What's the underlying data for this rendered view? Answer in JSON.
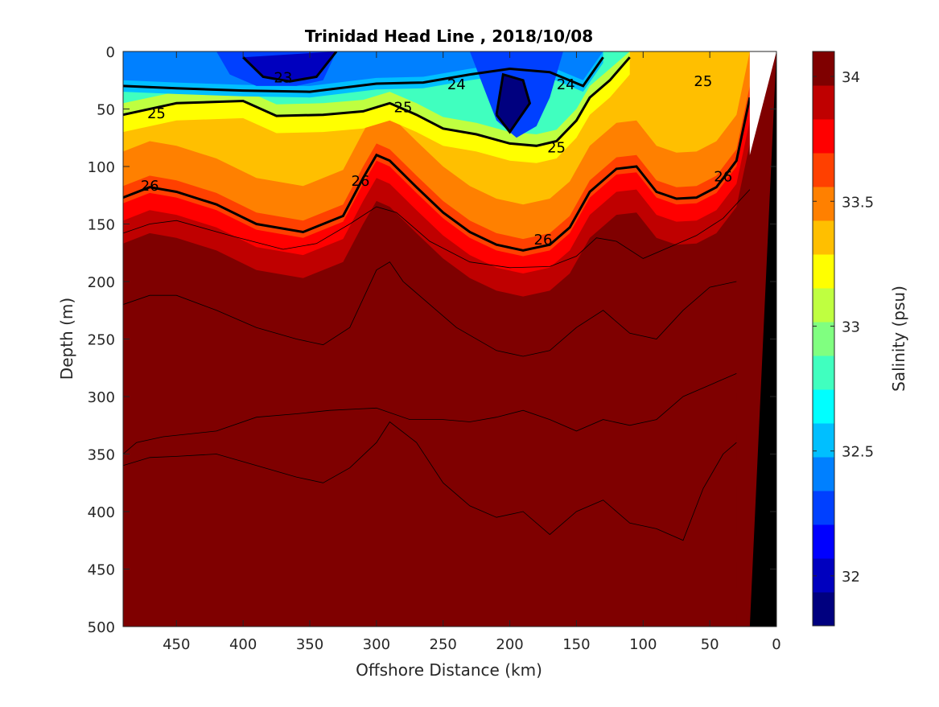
{
  "chart_data": {
    "type": "heatmap",
    "title": "Trinidad Head Line , 2018/10/08",
    "xlabel": "Offshore Distance (km)",
    "ylabel": "Depth (m)",
    "colorbar_label": "Salinity (psu)",
    "xlim": [
      490,
      0
    ],
    "ylim": [
      500,
      0
    ],
    "x_ticks": [
      450,
      400,
      350,
      300,
      250,
      200,
      150,
      100,
      50,
      0
    ],
    "y_ticks": [
      0,
      50,
      100,
      150,
      200,
      250,
      300,
      350,
      400,
      450,
      500
    ],
    "colorbar_range": [
      31.8,
      34.1
    ],
    "colorbar_ticks": [
      32,
      32.5,
      33,
      33.5,
      34
    ],
    "colormap": [
      "#00007f",
      "#0000bf",
      "#0000ff",
      "#0040ff",
      "#0080ff",
      "#00bfff",
      "#00ffff",
      "#40ffbf",
      "#80ff80",
      "#bfff40",
      "#ffff00",
      "#ffbf00",
      "#ff8000",
      "#ff4000",
      "#ff0000",
      "#bf0000",
      "#7f0000"
    ],
    "density_contour_labels": [
      {
        "text": "23",
        "x": 370,
        "y": 22
      },
      {
        "text": "24",
        "x": 240,
        "y": 28
      },
      {
        "text": "24",
        "x": 158,
        "y": 28
      },
      {
        "text": "25",
        "x": 465,
        "y": 53
      },
      {
        "text": "25",
        "x": 280,
        "y": 48
      },
      {
        "text": "25",
        "x": 165,
        "y": 83
      },
      {
        "text": "25",
        "x": 55,
        "y": 25
      },
      {
        "text": "26",
        "x": 470,
        "y": 116
      },
      {
        "text": "26",
        "x": 312,
        "y": 112
      },
      {
        "text": "26",
        "x": 175,
        "y": 163
      },
      {
        "text": "26",
        "x": 40,
        "y": 108
      }
    ],
    "isopycnals": [
      {
        "name": "24",
        "points": [
          [
            490,
            30
          ],
          [
            450,
            32
          ],
          [
            400,
            34
          ],
          [
            350,
            35
          ],
          [
            300,
            28
          ],
          [
            265,
            27
          ],
          [
            230,
            20
          ],
          [
            200,
            15
          ],
          [
            170,
            18
          ],
          [
            145,
            30
          ],
          [
            130,
            5
          ]
        ]
      },
      {
        "name": "25",
        "points": [
          [
            490,
            55
          ],
          [
            450,
            45
          ],
          [
            400,
            43
          ],
          [
            375,
            56
          ],
          [
            340,
            55
          ],
          [
            310,
            52
          ],
          [
            290,
            45
          ],
          [
            270,
            55
          ],
          [
            250,
            67
          ],
          [
            225,
            72
          ],
          [
            200,
            80
          ],
          [
            180,
            82
          ],
          [
            165,
            78
          ],
          [
            150,
            60
          ],
          [
            140,
            40
          ],
          [
            125,
            25
          ],
          [
            110,
            5
          ]
        ]
      },
      {
        "name": "26",
        "points": [
          [
            490,
            127
          ],
          [
            470,
            118
          ],
          [
            450,
            122
          ],
          [
            420,
            133
          ],
          [
            390,
            150
          ],
          [
            355,
            157
          ],
          [
            325,
            143
          ],
          [
            310,
            110
          ],
          [
            300,
            90
          ],
          [
            290,
            95
          ],
          [
            270,
            118
          ],
          [
            250,
            140
          ],
          [
            230,
            157
          ],
          [
            210,
            168
          ],
          [
            190,
            173
          ],
          [
            170,
            168
          ],
          [
            155,
            153
          ],
          [
            140,
            122
          ],
          [
            120,
            102
          ],
          [
            105,
            100
          ],
          [
            90,
            122
          ],
          [
            75,
            128
          ],
          [
            60,
            127
          ],
          [
            45,
            118
          ],
          [
            30,
            95
          ],
          [
            20,
            40
          ]
        ]
      },
      {
        "name": "23 core",
        "points": [
          [
            400,
            5
          ],
          [
            385,
            22
          ],
          [
            365,
            26
          ],
          [
            345,
            22
          ],
          [
            330,
            0
          ]
        ]
      },
      {
        "name": "23.5 core",
        "points": [
          [
            210,
            55
          ],
          [
            205,
            20
          ],
          [
            190,
            25
          ],
          [
            185,
            45
          ],
          [
            200,
            70
          ],
          [
            210,
            55
          ]
        ]
      }
    ],
    "salinity_isolines": [
      {
        "name": "33.9",
        "points": [
          [
            490,
            158
          ],
          [
            470,
            150
          ],
          [
            450,
            147
          ],
          [
            410,
            160
          ],
          [
            370,
            172
          ],
          [
            345,
            167
          ],
          [
            320,
            150
          ],
          [
            300,
            135
          ],
          [
            285,
            140
          ],
          [
            260,
            165
          ],
          [
            230,
            183
          ],
          [
            200,
            188
          ],
          [
            170,
            187
          ],
          [
            150,
            178
          ],
          [
            135,
            162
          ],
          [
            120,
            165
          ],
          [
            100,
            180
          ],
          [
            80,
            170
          ],
          [
            60,
            160
          ],
          [
            40,
            145
          ],
          [
            20,
            120
          ]
        ]
      },
      {
        "name": "33.97",
        "points": [
          [
            490,
            220
          ],
          [
            470,
            212
          ],
          [
            450,
            212
          ],
          [
            420,
            225
          ],
          [
            390,
            240
          ],
          [
            360,
            250
          ],
          [
            340,
            255
          ],
          [
            320,
            240
          ],
          [
            300,
            190
          ],
          [
            290,
            183
          ],
          [
            280,
            200
          ],
          [
            260,
            220
          ],
          [
            240,
            240
          ],
          [
            210,
            260
          ],
          [
            190,
            265
          ],
          [
            170,
            260
          ],
          [
            150,
            240
          ],
          [
            130,
            225
          ],
          [
            110,
            245
          ],
          [
            90,
            250
          ],
          [
            70,
            225
          ],
          [
            50,
            205
          ],
          [
            30,
            200
          ]
        ]
      },
      {
        "name": "34.0",
        "points": [
          [
            490,
            360
          ],
          [
            470,
            353
          ],
          [
            450,
            352
          ],
          [
            420,
            350
          ],
          [
            390,
            360
          ],
          [
            360,
            370
          ],
          [
            340,
            375
          ],
          [
            320,
            362
          ],
          [
            300,
            340
          ],
          [
            290,
            322
          ],
          [
            270,
            340
          ],
          [
            250,
            375
          ],
          [
            230,
            395
          ],
          [
            210,
            405
          ],
          [
            190,
            400
          ],
          [
            170,
            420
          ],
          [
            150,
            400
          ],
          [
            130,
            390
          ],
          [
            110,
            410
          ],
          [
            90,
            415
          ],
          [
            70,
            425
          ],
          [
            55,
            380
          ],
          [
            40,
            350
          ],
          [
            30,
            340
          ]
        ]
      },
      {
        "name": "34.02",
        "points": [
          [
            490,
            350
          ],
          [
            480,
            340
          ],
          [
            460,
            335
          ],
          [
            420,
            330
          ],
          [
            390,
            318
          ],
          [
            360,
            315
          ],
          [
            335,
            312
          ],
          [
            300,
            310
          ],
          [
            275,
            320
          ],
          [
            250,
            320
          ],
          [
            230,
            322
          ],
          [
            210,
            318
          ],
          [
            190,
            312
          ],
          [
            170,
            320
          ],
          [
            150,
            330
          ],
          [
            130,
            320
          ],
          [
            110,
            325
          ],
          [
            90,
            320
          ],
          [
            70,
            300
          ],
          [
            50,
            290
          ],
          [
            30,
            280
          ]
        ]
      }
    ],
    "salinity_layers": [
      {
        "name": "surface low",
        "value": 32.3,
        "points": [
          [
            490,
            0
          ],
          [
            420,
            0
          ],
          [
            410,
            20
          ],
          [
            390,
            30
          ],
          [
            360,
            30
          ],
          [
            340,
            25
          ],
          [
            330,
            0
          ],
          [
            230,
            0
          ],
          [
            220,
            30
          ],
          [
            210,
            60
          ],
          [
            195,
            75
          ],
          [
            180,
            65
          ],
          [
            170,
            40
          ],
          [
            160,
            0
          ],
          [
            490,
            0
          ]
        ]
      }
    ]
  }
}
